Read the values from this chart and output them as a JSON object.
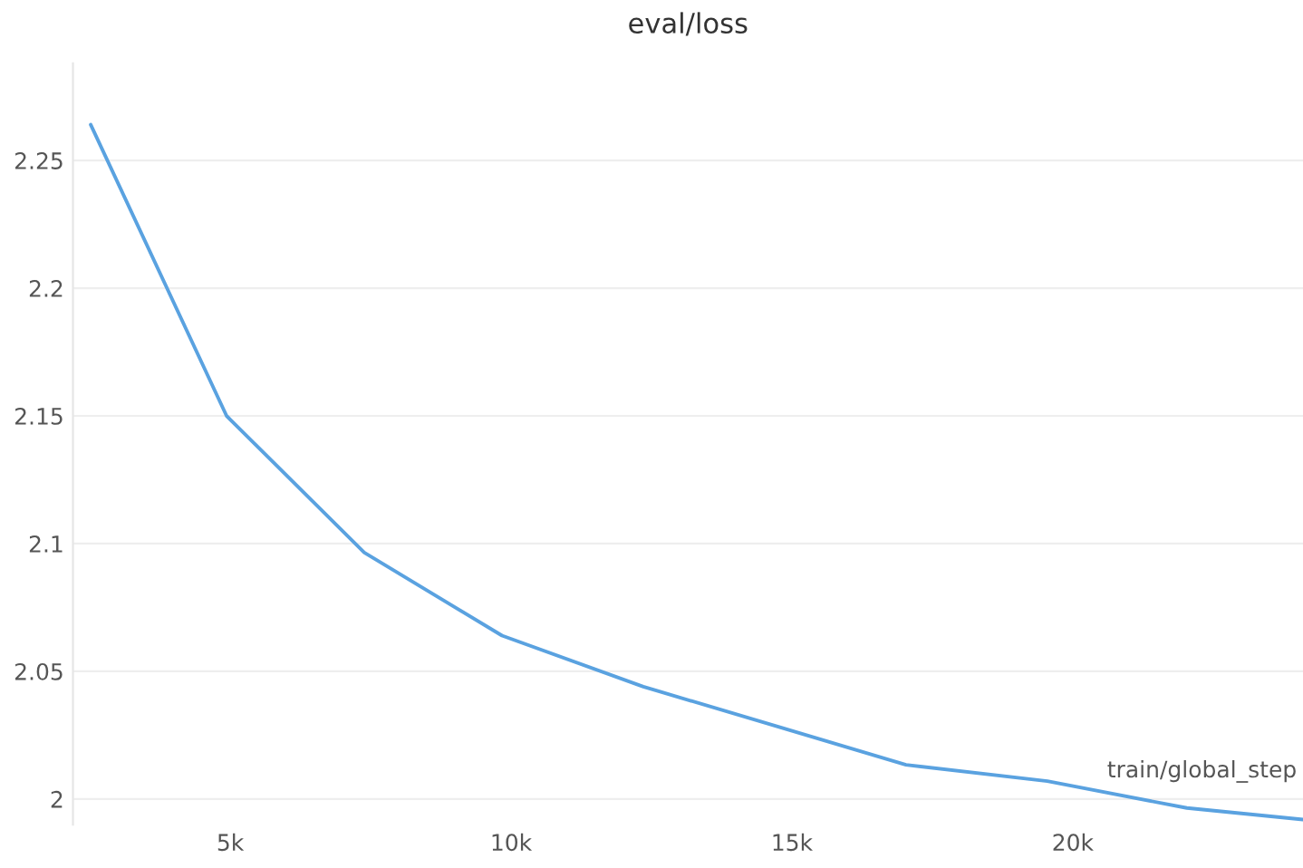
{
  "chart_data": {
    "type": "line",
    "title": "eval/loss",
    "xlabel": "train/global_step",
    "x": [
      2516,
      4935,
      7387,
      9839,
      12355,
      14800,
      17032,
      19548,
      22032,
      24097
    ],
    "series": [
      {
        "color": "#5aa2e0",
        "values": [
          2.264,
          2.15,
          2.0965,
          2.064,
          2.044,
          2.028,
          2.0134,
          2.007,
          1.9965,
          1.992
        ]
      }
    ],
    "xlim": [
      2200,
      24100
    ],
    "ylim": [
      1.99,
      2.288
    ],
    "xticks": [
      {
        "value": 5000,
        "label": "5k"
      },
      {
        "value": 10000,
        "label": "10k"
      },
      {
        "value": 15000,
        "label": "15k"
      },
      {
        "value": 20000,
        "label": "20k"
      }
    ],
    "yticks": [
      2,
      2.05,
      2.1,
      2.15,
      2.2,
      2.25
    ],
    "grid": "y",
    "marker": "none",
    "line_style": "solid"
  }
}
